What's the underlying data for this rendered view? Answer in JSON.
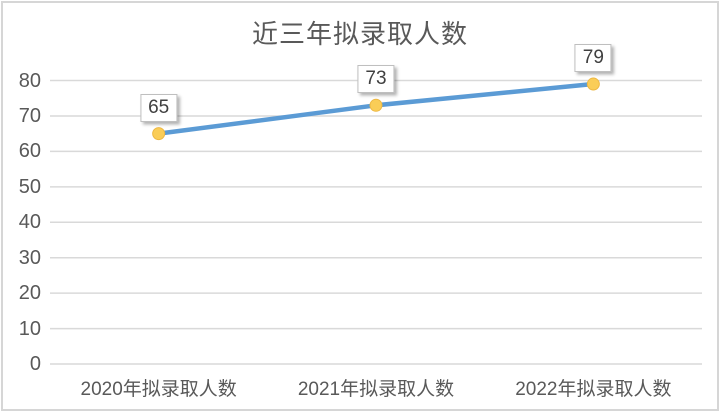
{
  "chart_data": {
    "type": "line",
    "title": "近三年拟录取人数",
    "categories": [
      "2020年拟录取人数",
      "2021年拟录取人数",
      "2022年拟录取人数"
    ],
    "values": [
      65,
      73,
      79
    ],
    "data_labels": true,
    "xlabel": "",
    "ylabel": "",
    "ylim": [
      0,
      80
    ],
    "ytick_step": 10,
    "yticks": [
      0,
      10,
      20,
      30,
      40,
      50,
      60,
      70,
      80
    ],
    "grid": true,
    "legend": "none",
    "colors": {
      "line": "#5B9BD5",
      "marker": "#FACD57",
      "marker_edge": "#EDB844",
      "grid": "#D9D9D9",
      "title_text": "#595959",
      "axis_text": "#595959",
      "label_text": "#404040",
      "label_border": "#BFBFBF",
      "label_bg": "#FFFFFF",
      "frame_border": "#D6D6D6",
      "background": "#FFFFFF"
    }
  }
}
